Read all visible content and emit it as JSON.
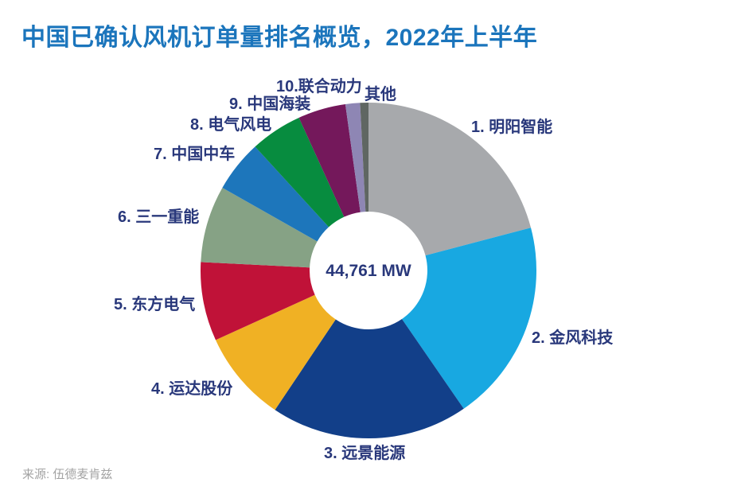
{
  "page": {
    "title": "中国已确认风机订单量排名概览，2022年上半年",
    "source": "来源: 伍德麦肯兹",
    "colors": {
      "title": "#1B75BC",
      "labels": "#29387B",
      "source": "#A3A3A3",
      "background": "#FFFFFF"
    }
  },
  "chart_data": {
    "type": "pie",
    "subtype": "donut",
    "title": "中国已确认风机订单量排名概览，2022年上半年",
    "center_label": "44,761 MW",
    "total_mw": 44761,
    "start_angle_deg": 0,
    "direction": "clockwise",
    "legend_position": "labels-around-slices",
    "categories": [
      "1. 明阳智能",
      "2. 金风科技",
      "3. 远景能源",
      "4. 运达股份",
      "5. 东方电气",
      "6. 三一重能",
      "7. 中国中车",
      "8. 电气风电",
      "9. 中国海装",
      "10.联合动力",
      "其他"
    ],
    "values_pct_estimated": [
      20.9,
      19.5,
      19.0,
      8.8,
      7.6,
      7.4,
      5.0,
      5.0,
      4.6,
      1.4,
      0.8
    ],
    "colors": [
      "#A7A9AC",
      "#18A8E1",
      "#123F89",
      "#F0B124",
      "#C01238",
      "#86A285",
      "#1D76BB",
      "#078C3F",
      "#74185B",
      "#8E86B4",
      "#5F6662"
    ]
  }
}
